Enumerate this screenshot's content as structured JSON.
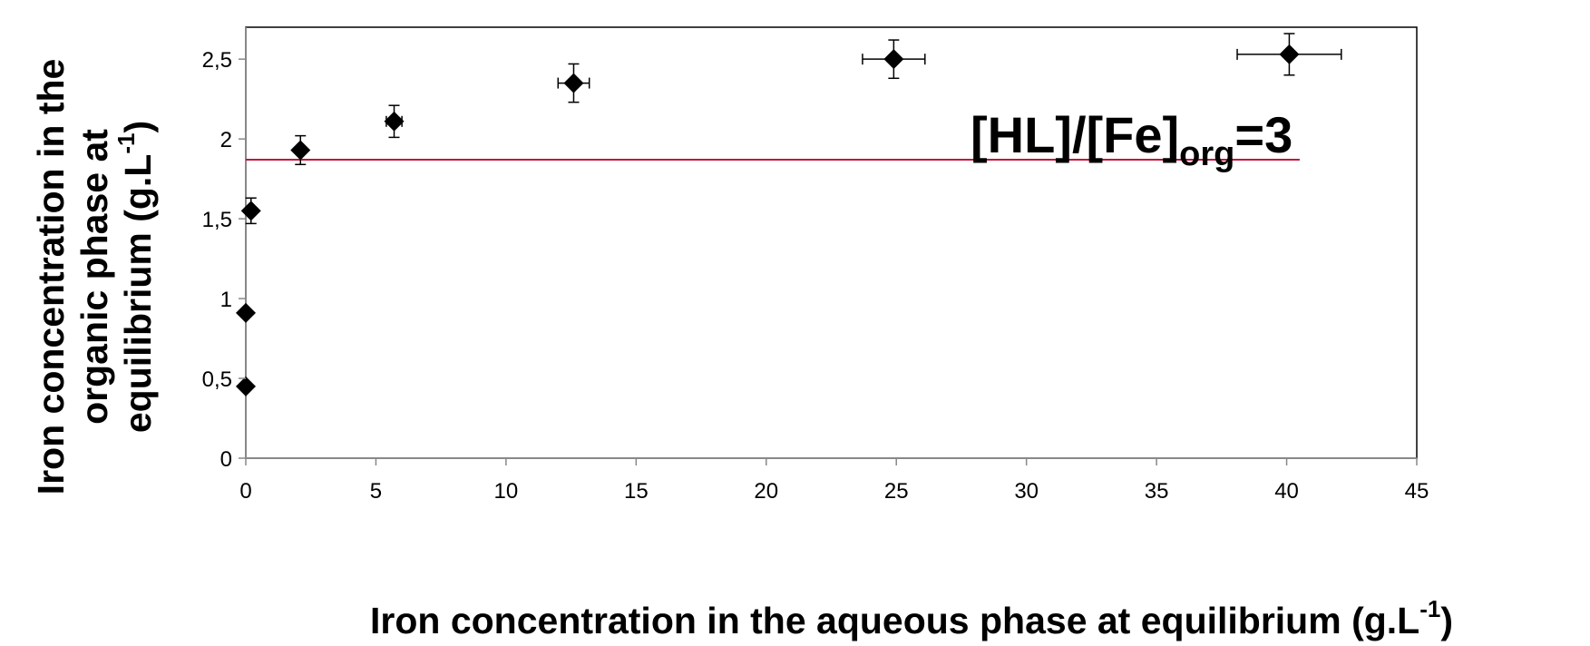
{
  "chart_data": {
    "type": "scatter",
    "title": "",
    "xlabel": "Iron concentration in the aqueous phase at equilibrium (g.L",
    "xlabel_sup": "-1",
    "xlabel_end": ")",
    "ylabel_lines": [
      "Iron concentration in the",
      "organic phase at",
      "equilibrium  (g.L"
    ],
    "ylabel_sup": "-1",
    "ylabel_end": ")",
    "xlim": [
      0,
      45
    ],
    "ylim": [
      0,
      2.7
    ],
    "x_ticks": [
      0,
      5,
      10,
      15,
      20,
      25,
      30,
      35,
      40,
      45
    ],
    "x_tick_labels": [
      "0",
      "5",
      "10",
      "15",
      "20",
      "25",
      "30",
      "35",
      "40",
      "45"
    ],
    "y_ticks": [
      0,
      0.5,
      1,
      1.5,
      2,
      2.5
    ],
    "y_tick_labels": [
      "0",
      "0,5",
      "1",
      "1,5",
      "2",
      "2,5"
    ],
    "grid": false,
    "series": [
      {
        "marker": "diamond",
        "color": "#000000",
        "points": [
          {
            "x": 0.0,
            "y": 0.45,
            "xerr": 0,
            "yerr": 0
          },
          {
            "x": 0.0,
            "y": 0.91,
            "xerr": 0,
            "yerr": 0
          },
          {
            "x": 0.2,
            "y": 1.55,
            "xerr": 0,
            "yerr": 0.08
          },
          {
            "x": 2.1,
            "y": 1.93,
            "xerr": 0,
            "yerr": 0.09
          },
          {
            "x": 5.7,
            "y": 2.11,
            "xerr": 0.3,
            "yerr": 0.1
          },
          {
            "x": 12.6,
            "y": 2.35,
            "xerr": 0.6,
            "yerr": 0.12
          },
          {
            "x": 24.9,
            "y": 2.5,
            "xerr": 1.2,
            "yerr": 0.12
          },
          {
            "x": 40.1,
            "y": 2.53,
            "xerr": 2.0,
            "yerr": 0.13
          }
        ]
      }
    ],
    "reference_line": {
      "y": 1.87,
      "x_start": 0,
      "x_end": 40.5,
      "color": "#c0143c"
    },
    "annotation": {
      "text_main": "[HL]/[Fe]",
      "text_sub": "org",
      "text_end": "=3"
    }
  }
}
